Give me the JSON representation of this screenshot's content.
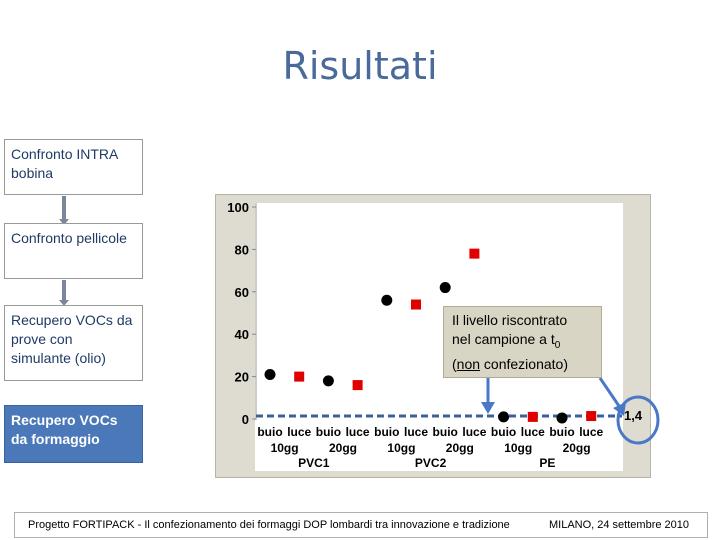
{
  "slide": {
    "title": "Risultati"
  },
  "flow": [
    {
      "label": "Confronto INTRA bobina"
    },
    {
      "label": "Confronto pellicole"
    },
    {
      "label": "Recupero VOCs da prove con simulante (olio)"
    },
    {
      "label": "Recupero VOCs da formaggio"
    }
  ],
  "callout": {
    "line1": "Il livello riscontrato",
    "line2a": "nel campione  a t",
    "line2sub": "0",
    "line3a": "(",
    "line3u": "non",
    "line3b": " confezionato)"
  },
  "annotation": {
    "value": "1,4"
  },
  "footer": {
    "left": "Progetto FORTIPACK - Il confezionamento dei formaggi DOP lombardi tra innovazione e tradizione",
    "right": "MILANO, 24 settembre 2010"
  },
  "colors": {
    "title": "#4a6a9a",
    "active_box": "#4a78b8",
    "black_marker": "#000000",
    "red_marker": "#e00000",
    "baseline": "#3a5fa0",
    "arrow": "#4a78c8"
  },
  "chart_data": {
    "type": "scatter",
    "ylim": [
      0,
      100
    ],
    "yticks": [
      0,
      20,
      40,
      60,
      80,
      100
    ],
    "categories": [
      {
        "cond": "buio",
        "time": "10gg",
        "film": "PVC1"
      },
      {
        "cond": "luce",
        "time": "10gg",
        "film": "PVC1"
      },
      {
        "cond": "buio",
        "time": "20gg",
        "film": "PVC1"
      },
      {
        "cond": "luce",
        "time": "20gg",
        "film": "PVC1"
      },
      {
        "cond": "buio",
        "time": "10gg",
        "film": "PVC2"
      },
      {
        "cond": "luce",
        "time": "10gg",
        "film": "PVC2"
      },
      {
        "cond": "buio",
        "time": "20gg",
        "film": "PVC2"
      },
      {
        "cond": "luce",
        "time": "20gg",
        "film": "PVC2"
      },
      {
        "cond": "buio",
        "time": "10gg",
        "film": "PE"
      },
      {
        "cond": "luce",
        "time": "10gg",
        "film": "PE"
      },
      {
        "cond": "buio",
        "time": "20gg",
        "film": "PE"
      },
      {
        "cond": "luce",
        "time": "20gg",
        "film": "PE"
      }
    ],
    "times": [
      "10gg",
      "20gg",
      "10gg",
      "20gg",
      "10gg",
      "20gg"
    ],
    "films": [
      "PVC1",
      "PVC2",
      "PE"
    ],
    "points": [
      {
        "x": 0,
        "y": 21,
        "marker": "circle",
        "color": "black"
      },
      {
        "x": 1,
        "y": 20,
        "marker": "square",
        "color": "red"
      },
      {
        "x": 2,
        "y": 18,
        "marker": "circle",
        "color": "black"
      },
      {
        "x": 3,
        "y": 16,
        "marker": "square",
        "color": "red"
      },
      {
        "x": 4,
        "y": 56,
        "marker": "circle",
        "color": "black"
      },
      {
        "x": 5,
        "y": 54,
        "marker": "square",
        "color": "red"
      },
      {
        "x": 6,
        "y": 62,
        "marker": "circle",
        "color": "black"
      },
      {
        "x": 7,
        "y": 78,
        "marker": "square",
        "color": "red"
      },
      {
        "x": 8,
        "y": 1,
        "marker": "circle",
        "color": "black"
      },
      {
        "x": 9,
        "y": 1,
        "marker": "square",
        "color": "red"
      },
      {
        "x": 10,
        "y": 0.5,
        "marker": "circle",
        "color": "black"
      },
      {
        "x": 11,
        "y": 1.4,
        "marker": "square",
        "color": "red"
      }
    ],
    "reference_line": {
      "y": 1.4,
      "style": "dashed"
    }
  }
}
